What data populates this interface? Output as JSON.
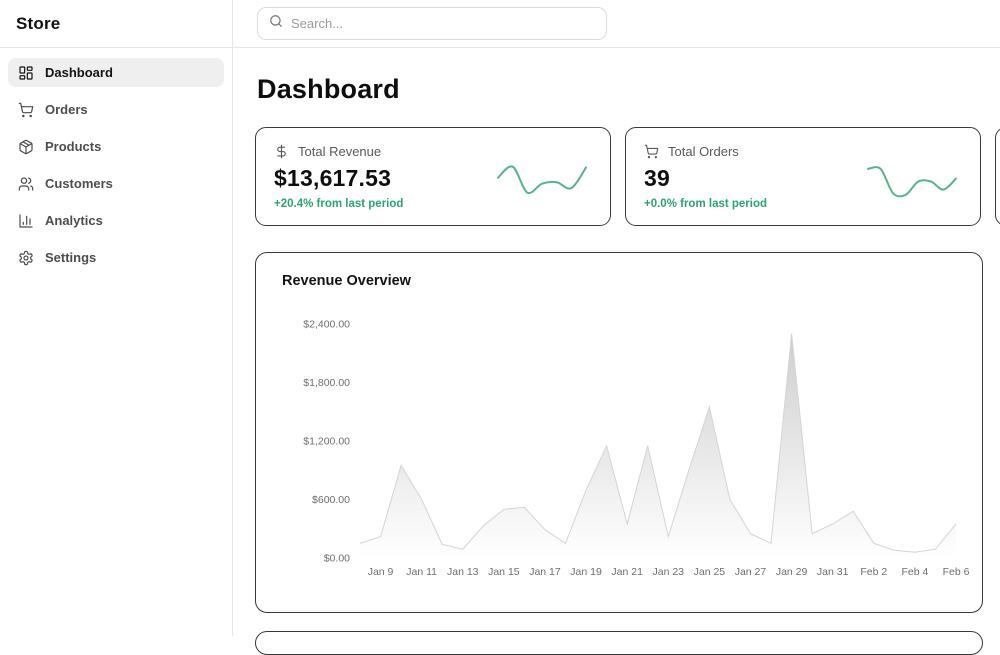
{
  "app": {
    "brand": "Store"
  },
  "sidebar": {
    "items": [
      {
        "label": "Dashboard",
        "icon": "layout-dashboard",
        "active": true
      },
      {
        "label": "Orders",
        "icon": "shopping-cart",
        "active": false
      },
      {
        "label": "Products",
        "icon": "package",
        "active": false
      },
      {
        "label": "Customers",
        "icon": "users",
        "active": false
      },
      {
        "label": "Analytics",
        "icon": "bar-chart",
        "active": false
      },
      {
        "label": "Settings",
        "icon": "gear",
        "active": false
      }
    ]
  },
  "topbar": {
    "search_placeholder": "Search..."
  },
  "page": {
    "title": "Dashboard"
  },
  "colors": {
    "delta_green": "#2ba471",
    "spark_green": "#57b38b",
    "area_gray": "#a6a6a6",
    "area_line": "#d4d4d4"
  },
  "stats": [
    {
      "icon": "dollar",
      "label": "Total Revenue",
      "value": "$13,617.53",
      "delta": "+20.4% from last period",
      "spark": [
        0.52,
        0.82,
        0.12,
        0.36,
        0.4,
        0.24,
        0.8
      ]
    },
    {
      "icon": "shopping-cart",
      "label": "Total Orders",
      "value": "39",
      "delta": "+0.0% from last period",
      "spark": [
        0.76,
        0.76,
        0.1,
        0.06,
        0.42,
        0.42,
        0.2,
        0.5
      ]
    }
  ],
  "chart_data": {
    "type": "area",
    "title": "Revenue Overview",
    "x": [
      "Jan 8",
      "Jan 9",
      "Jan 10",
      "Jan 11",
      "Jan 12",
      "Jan 13",
      "Jan 14",
      "Jan 15",
      "Jan 16",
      "Jan 17",
      "Jan 18",
      "Jan 19",
      "Jan 20",
      "Jan 21",
      "Jan 22",
      "Jan 23",
      "Jan 24",
      "Jan 25",
      "Jan 26",
      "Jan 27",
      "Jan 28",
      "Jan 29",
      "Jan 30",
      "Jan 31",
      "Feb 1",
      "Feb 2",
      "Feb 3",
      "Feb 4",
      "Feb 5",
      "Feb 6"
    ],
    "values": [
      150,
      220,
      950,
      600,
      140,
      90,
      330,
      500,
      520,
      290,
      150,
      700,
      1150,
      350,
      1150,
      220,
      900,
      1550,
      600,
      250,
      150,
      2300,
      250,
      350,
      480,
      150,
      80,
      60,
      90,
      350
    ],
    "xlabel": "",
    "ylabel": "",
    "ylim": [
      0,
      2400
    ],
    "yticks": [
      0,
      600,
      1200,
      1800,
      2400
    ],
    "ytick_labels": [
      "$0.00",
      "$600.00",
      "$1,200.00",
      "$1,800.00",
      "$2,400.00"
    ],
    "xtick_labels": [
      "Jan 9",
      "Jan 11",
      "Jan 13",
      "Jan 15",
      "Jan 17",
      "Jan 19",
      "Jan 21",
      "Jan 23",
      "Jan 25",
      "Jan 27",
      "Jan 29",
      "Jan 31",
      "Feb 2",
      "Feb 4",
      "Feb 6"
    ],
    "grid": false,
    "legend": false
  }
}
